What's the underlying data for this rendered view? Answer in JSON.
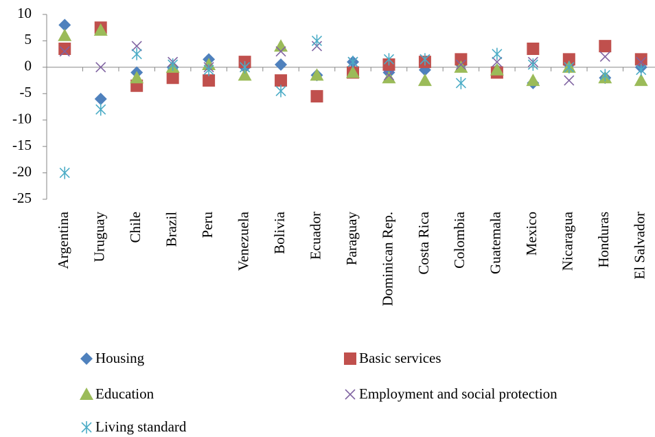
{
  "chart_data": {
    "type": "scatter",
    "categories": [
      "Argentina",
      "Uruguay",
      "Chile",
      "Brazil",
      "Peru",
      "Venezuela",
      "Bolivia",
      "Ecuador",
      "Paraguay",
      "Dominican Rep.",
      "Costa Rica",
      "Colombia",
      "Guatemala",
      "Mexico",
      "Nicaragua",
      "Honduras",
      "El Salvador"
    ],
    "series": [
      {
        "name": "Housing",
        "color": "#4f81bd",
        "marker": "diamond",
        "values": [
          8,
          -6,
          -1,
          0,
          1.5,
          0,
          0.5,
          -1.5,
          1,
          -1,
          -0.5,
          0.5,
          -0.5,
          -3,
          0.5,
          -2,
          0
        ]
      },
      {
        "name": "Basic services",
        "color": "#c0504d",
        "marker": "square",
        "values": [
          3.5,
          7.5,
          -3.5,
          -2,
          -2.5,
          1,
          -2.5,
          -5.5,
          -1,
          0.5,
          1,
          1.5,
          -1,
          3.5,
          1.5,
          4,
          1.5
        ]
      },
      {
        "name": "Education",
        "color": "#9bbb59",
        "marker": "triangle",
        "values": [
          6,
          7,
          -2,
          0,
          0.5,
          -1.5,
          4,
          -1.5,
          -1,
          -2,
          -2.5,
          0,
          -0.5,
          -2.5,
          0,
          -2,
          -2.5
        ]
      },
      {
        "name": "Employment and social protection",
        "color": "#8064a2",
        "marker": "x",
        "values": [
          3,
          0,
          4,
          1,
          0,
          0,
          3,
          4,
          1,
          -1.5,
          1.5,
          0.5,
          1,
          1,
          -2.5,
          2,
          1
        ]
      },
      {
        "name": "Living standard",
        "color": "#4bacc6",
        "marker": "star",
        "values": [
          -20,
          -8,
          2.5,
          0.5,
          -0.5,
          0,
          -4.5,
          5,
          1,
          1.5,
          1.5,
          -3,
          2.5,
          0.5,
          0,
          -1.5,
          -0.5
        ]
      }
    ],
    "ylim": [
      -25,
      10
    ],
    "yticks": [
      -25,
      -20,
      -15,
      -10,
      -5,
      0,
      5,
      10
    ]
  }
}
